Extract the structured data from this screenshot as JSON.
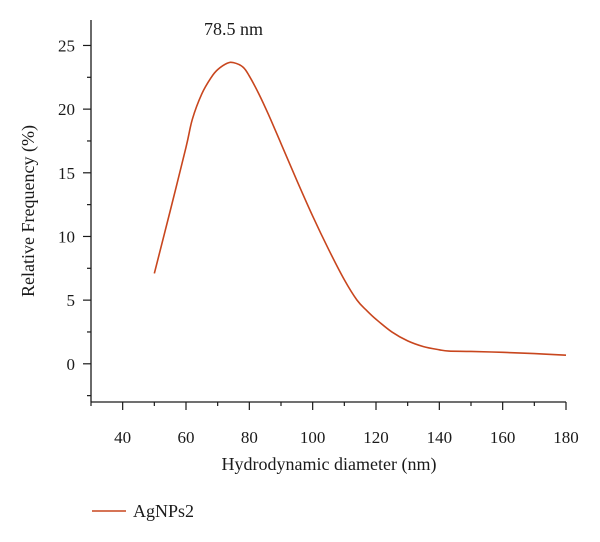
{
  "chart_data": {
    "type": "line",
    "xlabel": "Hydrodynamic diameter (nm)",
    "ylabel": "Relative Frequency (%)",
    "xlim": [
      30,
      180
    ],
    "ylim": [
      -3,
      27
    ],
    "x_ticks": [
      40,
      60,
      80,
      100,
      120,
      140,
      160,
      180
    ],
    "y_ticks": [
      0,
      5,
      10,
      15,
      20,
      25
    ],
    "grid": false,
    "legend_position": "bottom-left",
    "series": [
      {
        "name": "AgNPs2",
        "color": "#c8461e",
        "points": [
          [
            50,
            7.1
          ],
          [
            55,
            12.0
          ],
          [
            60,
            17.0
          ],
          [
            62,
            19.2
          ],
          [
            65,
            21.2
          ],
          [
            68,
            22.5
          ],
          [
            70,
            23.1
          ],
          [
            73,
            23.6
          ],
          [
            75,
            23.65
          ],
          [
            78,
            23.3
          ],
          [
            80,
            22.6
          ],
          [
            83,
            21.2
          ],
          [
            86,
            19.6
          ],
          [
            90,
            17.3
          ],
          [
            95,
            14.4
          ],
          [
            100,
            11.6
          ],
          [
            105,
            9.0
          ],
          [
            110,
            6.6
          ],
          [
            114,
            5.0
          ],
          [
            117,
            4.2
          ],
          [
            120,
            3.5
          ],
          [
            125,
            2.5
          ],
          [
            130,
            1.8
          ],
          [
            135,
            1.35
          ],
          [
            140,
            1.1
          ],
          [
            143,
            1.0
          ],
          [
            150,
            0.97
          ],
          [
            160,
            0.9
          ],
          [
            170,
            0.8
          ],
          [
            180,
            0.68
          ]
        ]
      }
    ],
    "annotations": [
      {
        "text": "78.5 nm",
        "x": 75,
        "y": 25.5
      }
    ]
  }
}
